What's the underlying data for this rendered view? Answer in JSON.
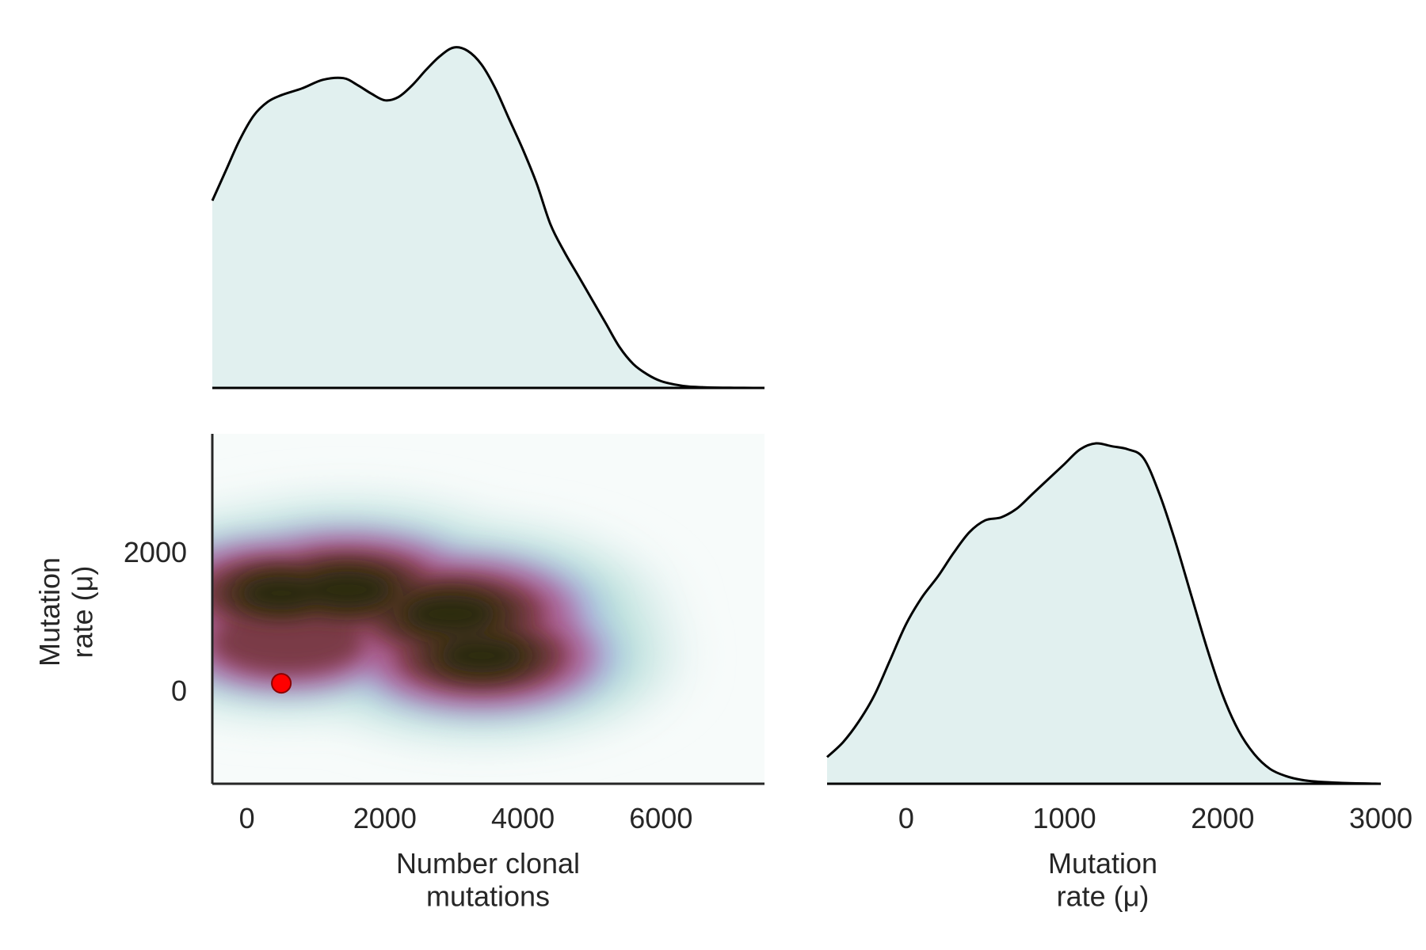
{
  "chart_data": [
    {
      "panel": "marginal-top",
      "type": "area",
      "title": "",
      "xlabel": "",
      "ylabel": "",
      "xlim": [
        -500,
        7500
      ],
      "x": [
        -500,
        -300,
        -100,
        100,
        300,
        500,
        800,
        1100,
        1400,
        1600,
        1800,
        2000,
        2200,
        2400,
        2600,
        2800,
        3000,
        3200,
        3400,
        3600,
        3800,
        4000,
        4200,
        4400,
        4600,
        4800,
        5000,
        5200,
        5400,
        5600,
        5800,
        6000,
        6200,
        6400,
        6600,
        6800,
        7000,
        7200,
        7500
      ],
      "y": [
        0.55,
        0.64,
        0.73,
        0.8,
        0.84,
        0.86,
        0.88,
        0.905,
        0.91,
        0.89,
        0.865,
        0.845,
        0.855,
        0.89,
        0.935,
        0.975,
        1.0,
        0.99,
        0.95,
        0.88,
        0.79,
        0.7,
        0.6,
        0.48,
        0.4,
        0.33,
        0.26,
        0.19,
        0.12,
        0.07,
        0.04,
        0.02,
        0.01,
        0.004,
        0.002,
        0.001,
        0.0005,
        0.0002,
        0.0
      ],
      "fill": "#e1f0ef",
      "line": "#000000"
    },
    {
      "panel": "joint-kde",
      "type": "heatmap",
      "title": "",
      "xlabel": "Number clonal\nmutations",
      "ylabel": "Mutation\nrate (μ)",
      "xlim": [
        -500,
        7500
      ],
      "ylim": [
        -1350,
        3700
      ],
      "xticks": [
        "0",
        "2000",
        "4000",
        "6000"
      ],
      "yticks": [
        "0",
        "2000"
      ],
      "density_peaks": [
        {
          "x": 2950,
          "y": 1100,
          "density": 1.0
        },
        {
          "x": 1450,
          "y": 1450,
          "density": 0.95
        },
        {
          "x": 500,
          "y": 1400,
          "density": 0.75
        },
        {
          "x": 3400,
          "y": 500,
          "density": 0.8
        },
        {
          "x": 600,
          "y": 700,
          "density": 0.55
        }
      ],
      "reference_point": {
        "x": 500,
        "y": 100,
        "color": "#ff0000"
      },
      "colormap": [
        "#f7fbfa",
        "#e1f0ef",
        "#b5dfd8",
        "#a9c2e2",
        "#b07fb9",
        "#a5527f",
        "#7a3b46",
        "#4d3220",
        "#2a2a10"
      ]
    },
    {
      "panel": "marginal-right",
      "type": "area",
      "title": "",
      "xlabel": "Mutation\nrate (μ)",
      "ylabel": "",
      "xlim": [
        -500,
        3000
      ],
      "xticks": [
        "0",
        "1000",
        "2000",
        "3000"
      ],
      "x": [
        -500,
        -400,
        -300,
        -200,
        -100,
        0,
        100,
        200,
        300,
        400,
        500,
        600,
        700,
        800,
        900,
        1000,
        1100,
        1200,
        1300,
        1400,
        1500,
        1600,
        1700,
        1800,
        1900,
        2000,
        2100,
        2200,
        2300,
        2400,
        2500,
        2600,
        2700,
        2800,
        2900,
        3000
      ],
      "y": [
        0.09,
        0.14,
        0.21,
        0.3,
        0.42,
        0.54,
        0.63,
        0.7,
        0.78,
        0.85,
        0.89,
        0.9,
        0.93,
        0.98,
        1.03,
        1.08,
        1.13,
        1.15,
        1.14,
        1.13,
        1.1,
        0.98,
        0.82,
        0.64,
        0.46,
        0.3,
        0.18,
        0.1,
        0.05,
        0.026,
        0.013,
        0.007,
        0.004,
        0.002,
        0.001,
        0.0
      ],
      "fill": "#e1f0ef",
      "line": "#000000"
    }
  ]
}
